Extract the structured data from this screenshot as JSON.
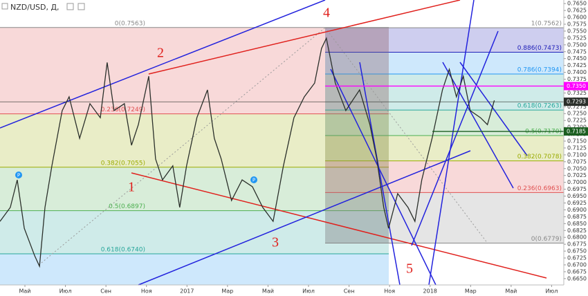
{
  "chart_data": {
    "type": "line",
    "title": "NZD/USD, Д,",
    "color": "#2a2f2a",
    "xlim": [
      2.77,
      30.6
    ],
    "ylim": [
      0.6627,
      0.7663
    ],
    "x": [
      2.77,
      3.28,
      3.62,
      3.97,
      4.48,
      4.72,
      4.99,
      5.33,
      5.84,
      6.18,
      6.7,
      7.21,
      7.72,
      8.06,
      8.4,
      8.91,
      9.26,
      9.6,
      10.11,
      10.45,
      10.79,
      11.3,
      11.64,
      11.98,
      12.49,
      13.01,
      13.35,
      13.69,
      14.2,
      14.72,
      15.23,
      15.74,
      16.25,
      16.76,
      17.28,
      17.79,
      18.3,
      18.64,
      18.88,
      19.32,
      19.84,
      20.52,
      21.03,
      21.37,
      21.71,
      21.95,
      22.4,
      22.91,
      23.25,
      23.59,
      24.1,
      24.61,
      24.95,
      25.3,
      25.64,
      25.98,
      26.49,
      26.83,
      27.17
    ],
    "values": [
      0.6858,
      0.6909,
      0.7009,
      0.6833,
      0.6733,
      0.6695,
      0.6909,
      0.706,
      0.7261,
      0.7311,
      0.716,
      0.7286,
      0.7235,
      0.7436,
      0.7261,
      0.7286,
      0.7135,
      0.721,
      0.7386,
      0.7085,
      0.7009,
      0.706,
      0.6909,
      0.706,
      0.7235,
      0.7336,
      0.716,
      0.7085,
      0.6934,
      0.7009,
      0.6984,
      0.6909,
      0.6858,
      0.706,
      0.7235,
      0.7311,
      0.7361,
      0.7487,
      0.7524,
      0.7361,
      0.7261,
      0.7336,
      0.721,
      0.7085,
      0.6909,
      0.6833,
      0.6959,
      0.6909,
      0.6858,
      0.7009,
      0.716,
      0.7336,
      0.7411,
      0.7311,
      0.7386,
      0.7261,
      0.7235,
      0.721,
      0.7298
    ],
    "xticks": [
      {
        "value": 4,
        "label": "Май"
      },
      {
        "value": 6,
        "label": "Июл"
      },
      {
        "value": 8,
        "label": "Сен"
      },
      {
        "value": 10,
        "label": "Ноя"
      },
      {
        "value": 12,
        "label": "2017"
      },
      {
        "value": 14,
        "label": "Мар"
      },
      {
        "value": 16,
        "label": "Май"
      },
      {
        "value": 18,
        "label": "Июл"
      },
      {
        "value": 20,
        "label": "Сен"
      },
      {
        "value": 22,
        "label": "Ноя"
      },
      {
        "value": 24,
        "label": "2018"
      },
      {
        "value": 26,
        "label": "Мар"
      },
      {
        "value": 28,
        "label": "Май"
      },
      {
        "value": 30,
        "label": "Июл"
      }
    ],
    "yticks": [
      {
        "value": 0.665,
        "label": "0.6650"
      },
      {
        "value": 0.6675,
        "label": "0.6675"
      },
      {
        "value": 0.67,
        "label": "0.6700"
      },
      {
        "value": 0.6725,
        "label": "0.6725"
      },
      {
        "value": 0.675,
        "label": "0.6750"
      },
      {
        "value": 0.6775,
        "label": "0.6775"
      },
      {
        "value": 0.68,
        "label": "0.6800"
      },
      {
        "value": 0.6825,
        "label": "0.6825"
      },
      {
        "value": 0.685,
        "label": "0.6850"
      },
      {
        "value": 0.6875,
        "label": "0.6875"
      },
      {
        "value": 0.69,
        "label": "0.6900"
      },
      {
        "value": 0.6925,
        "label": "0.6925"
      },
      {
        "value": 0.695,
        "label": "0.6950"
      },
      {
        "value": 0.6975,
        "label": "0.6975"
      },
      {
        "value": 0.7,
        "label": "0.7000"
      },
      {
        "value": 0.7025,
        "label": "0.7025"
      },
      {
        "value": 0.705,
        "label": "0.7050"
      },
      {
        "value": 0.7075,
        "label": "0.7075"
      },
      {
        "value": 0.71,
        "label": "0.7100"
      },
      {
        "value": 0.7125,
        "label": "0.7125"
      },
      {
        "value": 0.715,
        "label": "0.7150"
      },
      {
        "value": 0.7175,
        "label": "0.7175"
      },
      {
        "value": 0.72,
        "label": "0.7200"
      },
      {
        "value": 0.7225,
        "label": "0.7225"
      },
      {
        "value": 0.725,
        "label": "0.7250"
      },
      {
        "value": 0.7275,
        "label": "0.7275"
      },
      {
        "value": 0.73,
        "label": "0.7300"
      },
      {
        "value": 0.7325,
        "label": "0.7325"
      },
      {
        "value": 0.735,
        "label": "0.7350"
      },
      {
        "value": 0.7375,
        "label": "0.7375"
      },
      {
        "value": 0.74,
        "label": "0.7400"
      },
      {
        "value": 0.7425,
        "label": "0.7425"
      },
      {
        "value": 0.745,
        "label": "0.7450"
      },
      {
        "value": 0.7475,
        "label": "0.7475"
      },
      {
        "value": 0.75,
        "label": "0.7500"
      },
      {
        "value": 0.7525,
        "label": "0.7525"
      },
      {
        "value": 0.755,
        "label": "0.7550"
      },
      {
        "value": 0.7575,
        "label": "0.7575"
      },
      {
        "value": 0.76,
        "label": "0.7600"
      },
      {
        "value": 0.7625,
        "label": "0.7625"
      },
      {
        "value": 0.765,
        "label": "0.7650"
      }
    ],
    "fib_left": [
      {
        "value": 0.7563,
        "label": "0(0.7563)",
        "color": "#888888"
      },
      {
        "value": 0.7249,
        "label": "0.236(0.7249)",
        "color": "#e05050"
      },
      {
        "value": 0.7055,
        "label": "0.382(0.7055)",
        "color": "#9aab00"
      },
      {
        "value": 0.6897,
        "label": "0.5(0.6897)",
        "color": "#4caf50"
      },
      {
        "value": 0.674,
        "label": "0.618(0.6740)",
        "color": "#26a69a"
      }
    ],
    "fib_right": [
      {
        "value": 0.7562,
        "label": "1(0.7562)",
        "color": "#888888"
      },
      {
        "value": 0.7473,
        "label": "0.886(0.7473)",
        "color": "#2020b8"
      },
      {
        "value": 0.7394,
        "label": "0.786(0.7394)",
        "color": "#2196f3"
      },
      {
        "value": 0.7263,
        "label": "0.618(0.7263)",
        "color": "#26a69a"
      },
      {
        "value": 0.717,
        "label": "0.5(0.7170)",
        "color": "#4caf50"
      },
      {
        "value": 0.7078,
        "label": "0.382(0.7078)",
        "color": "#9aab00"
      },
      {
        "value": 0.6963,
        "label": "0.236(0.6963)",
        "color": "#e05050"
      },
      {
        "value": 0.6779,
        "label": "0(0.6779)",
        "color": "#888888"
      }
    ],
    "price_labels": [
      {
        "value": 0.735,
        "label": "0.7350",
        "color": "#ff00ff"
      },
      {
        "value": 0.7293,
        "label": "0.7293",
        "color": "#2a2f2a"
      },
      {
        "value": 0.7185,
        "label": "0.7185",
        "color": "#1b5e20"
      }
    ],
    "waves": [
      "1",
      "2",
      "3",
      "4",
      "5"
    ],
    "markers": [
      "P",
      "P"
    ]
  }
}
